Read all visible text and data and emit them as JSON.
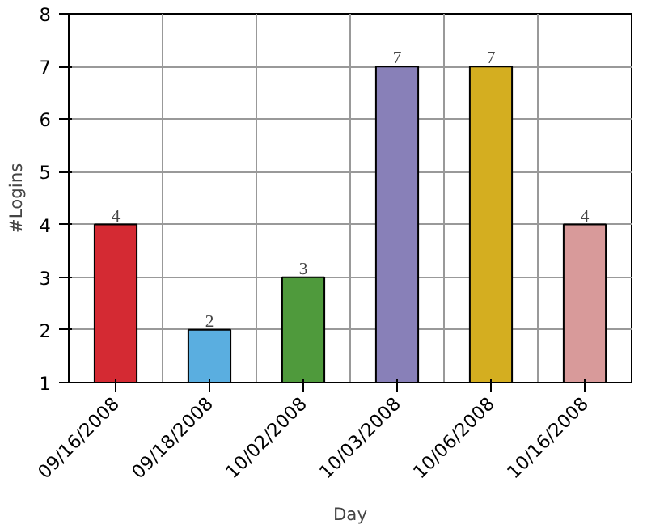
{
  "chart_data": {
    "type": "bar",
    "xlabel": "Day",
    "ylabel": "#Logins",
    "categories": [
      "09/16/2008",
      "09/18/2008",
      "10/02/2008",
      "10/03/2008",
      "10/06/2008",
      "10/16/2008"
    ],
    "values": [
      4,
      2,
      3,
      7,
      7,
      4
    ],
    "colors": [
      "#d42a33",
      "#5aaee0",
      "#4f9a3c",
      "#8880b8",
      "#d4ae20",
      "#d89a9a"
    ],
    "ylim": [
      1,
      8
    ],
    "yticks": [
      1,
      2,
      3,
      4,
      5,
      6,
      7,
      8
    ],
    "grid": true,
    "data_labels": true
  }
}
